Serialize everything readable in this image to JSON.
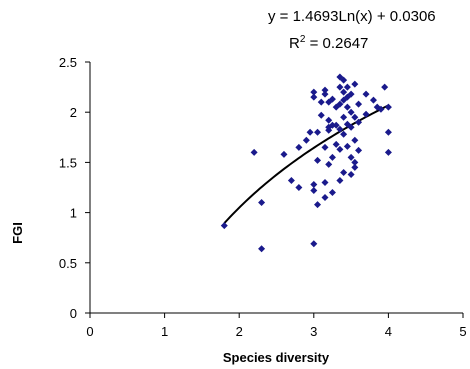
{
  "chart_data": {
    "type": "scatter",
    "xlabel": "Species diversity",
    "ylabel": "FGI",
    "xlim": [
      0,
      5
    ],
    "ylim": [
      0,
      2.5
    ],
    "xticks": [
      "0",
      "1",
      "2",
      "3",
      "4",
      "5"
    ],
    "yticks": [
      "0",
      "0.5",
      "1",
      "1.5",
      "2",
      "2.5"
    ],
    "grid": false,
    "legend": "none",
    "marker_color": "#1a1a8c",
    "trendline": {
      "type": "logarithmic",
      "equation": "y = 1.4693Ln(x) + 0.0306",
      "r2_prefix": "R",
      "r2_exp": "2",
      "r2_suffix": " = 0.2647",
      "a": 1.4693,
      "b": 0.0306,
      "x_range": [
        1.8,
        4.0
      ],
      "color": "#000000"
    },
    "points": [
      [
        1.8,
        0.87
      ],
      [
        2.2,
        1.6
      ],
      [
        2.3,
        1.1
      ],
      [
        2.3,
        0.64
      ],
      [
        2.6,
        1.58
      ],
      [
        2.7,
        1.32
      ],
      [
        2.8,
        1.25
      ],
      [
        2.8,
        1.65
      ],
      [
        2.9,
        1.72
      ],
      [
        2.95,
        1.8
      ],
      [
        3.0,
        2.2
      ],
      [
        3.0,
        2.15
      ],
      [
        3.0,
        1.28
      ],
      [
        3.0,
        1.22
      ],
      [
        3.0,
        0.69
      ],
      [
        3.05,
        1.8
      ],
      [
        3.05,
        1.08
      ],
      [
        3.05,
        1.52
      ],
      [
        3.1,
        2.1
      ],
      [
        3.1,
        1.97
      ],
      [
        3.15,
        2.22
      ],
      [
        3.15,
        2.18
      ],
      [
        3.15,
        1.65
      ],
      [
        3.15,
        1.3
      ],
      [
        3.15,
        1.15
      ],
      [
        3.2,
        2.1
      ],
      [
        3.2,
        1.92
      ],
      [
        3.2,
        1.85
      ],
      [
        3.2,
        1.82
      ],
      [
        3.2,
        1.48
      ],
      [
        3.25,
        2.13
      ],
      [
        3.25,
        1.87
      ],
      [
        3.25,
        1.55
      ],
      [
        3.25,
        1.2
      ],
      [
        3.3,
        2.05
      ],
      [
        3.3,
        1.87
      ],
      [
        3.3,
        1.68
      ],
      [
        3.35,
        2.35
      ],
      [
        3.35,
        2.25
      ],
      [
        3.35,
        2.08
      ],
      [
        3.35,
        1.83
      ],
      [
        3.35,
        1.63
      ],
      [
        3.35,
        1.32
      ],
      [
        3.4,
        2.32
      ],
      [
        3.4,
        2.2
      ],
      [
        3.4,
        2.12
      ],
      [
        3.4,
        1.95
      ],
      [
        3.4,
        1.78
      ],
      [
        3.4,
        1.4
      ],
      [
        3.45,
        2.25
      ],
      [
        3.45,
        2.15
      ],
      [
        3.45,
        2.05
      ],
      [
        3.45,
        1.88
      ],
      [
        3.45,
        1.66
      ],
      [
        3.5,
        2.18
      ],
      [
        3.5,
        2.0
      ],
      [
        3.5,
        1.85
      ],
      [
        3.5,
        1.55
      ],
      [
        3.5,
        1.38
      ],
      [
        3.55,
        2.28
      ],
      [
        3.55,
        1.95
      ],
      [
        3.55,
        1.72
      ],
      [
        3.55,
        1.5
      ],
      [
        3.55,
        1.45
      ],
      [
        3.6,
        2.08
      ],
      [
        3.6,
        1.9
      ],
      [
        3.6,
        1.62
      ],
      [
        3.7,
        2.18
      ],
      [
        3.7,
        1.98
      ],
      [
        3.8,
        2.12
      ],
      [
        3.85,
        2.05
      ],
      [
        3.9,
        2.03
      ],
      [
        3.95,
        2.25
      ],
      [
        4.0,
        2.05
      ],
      [
        4.0,
        1.8
      ],
      [
        4.0,
        1.6
      ]
    ]
  }
}
